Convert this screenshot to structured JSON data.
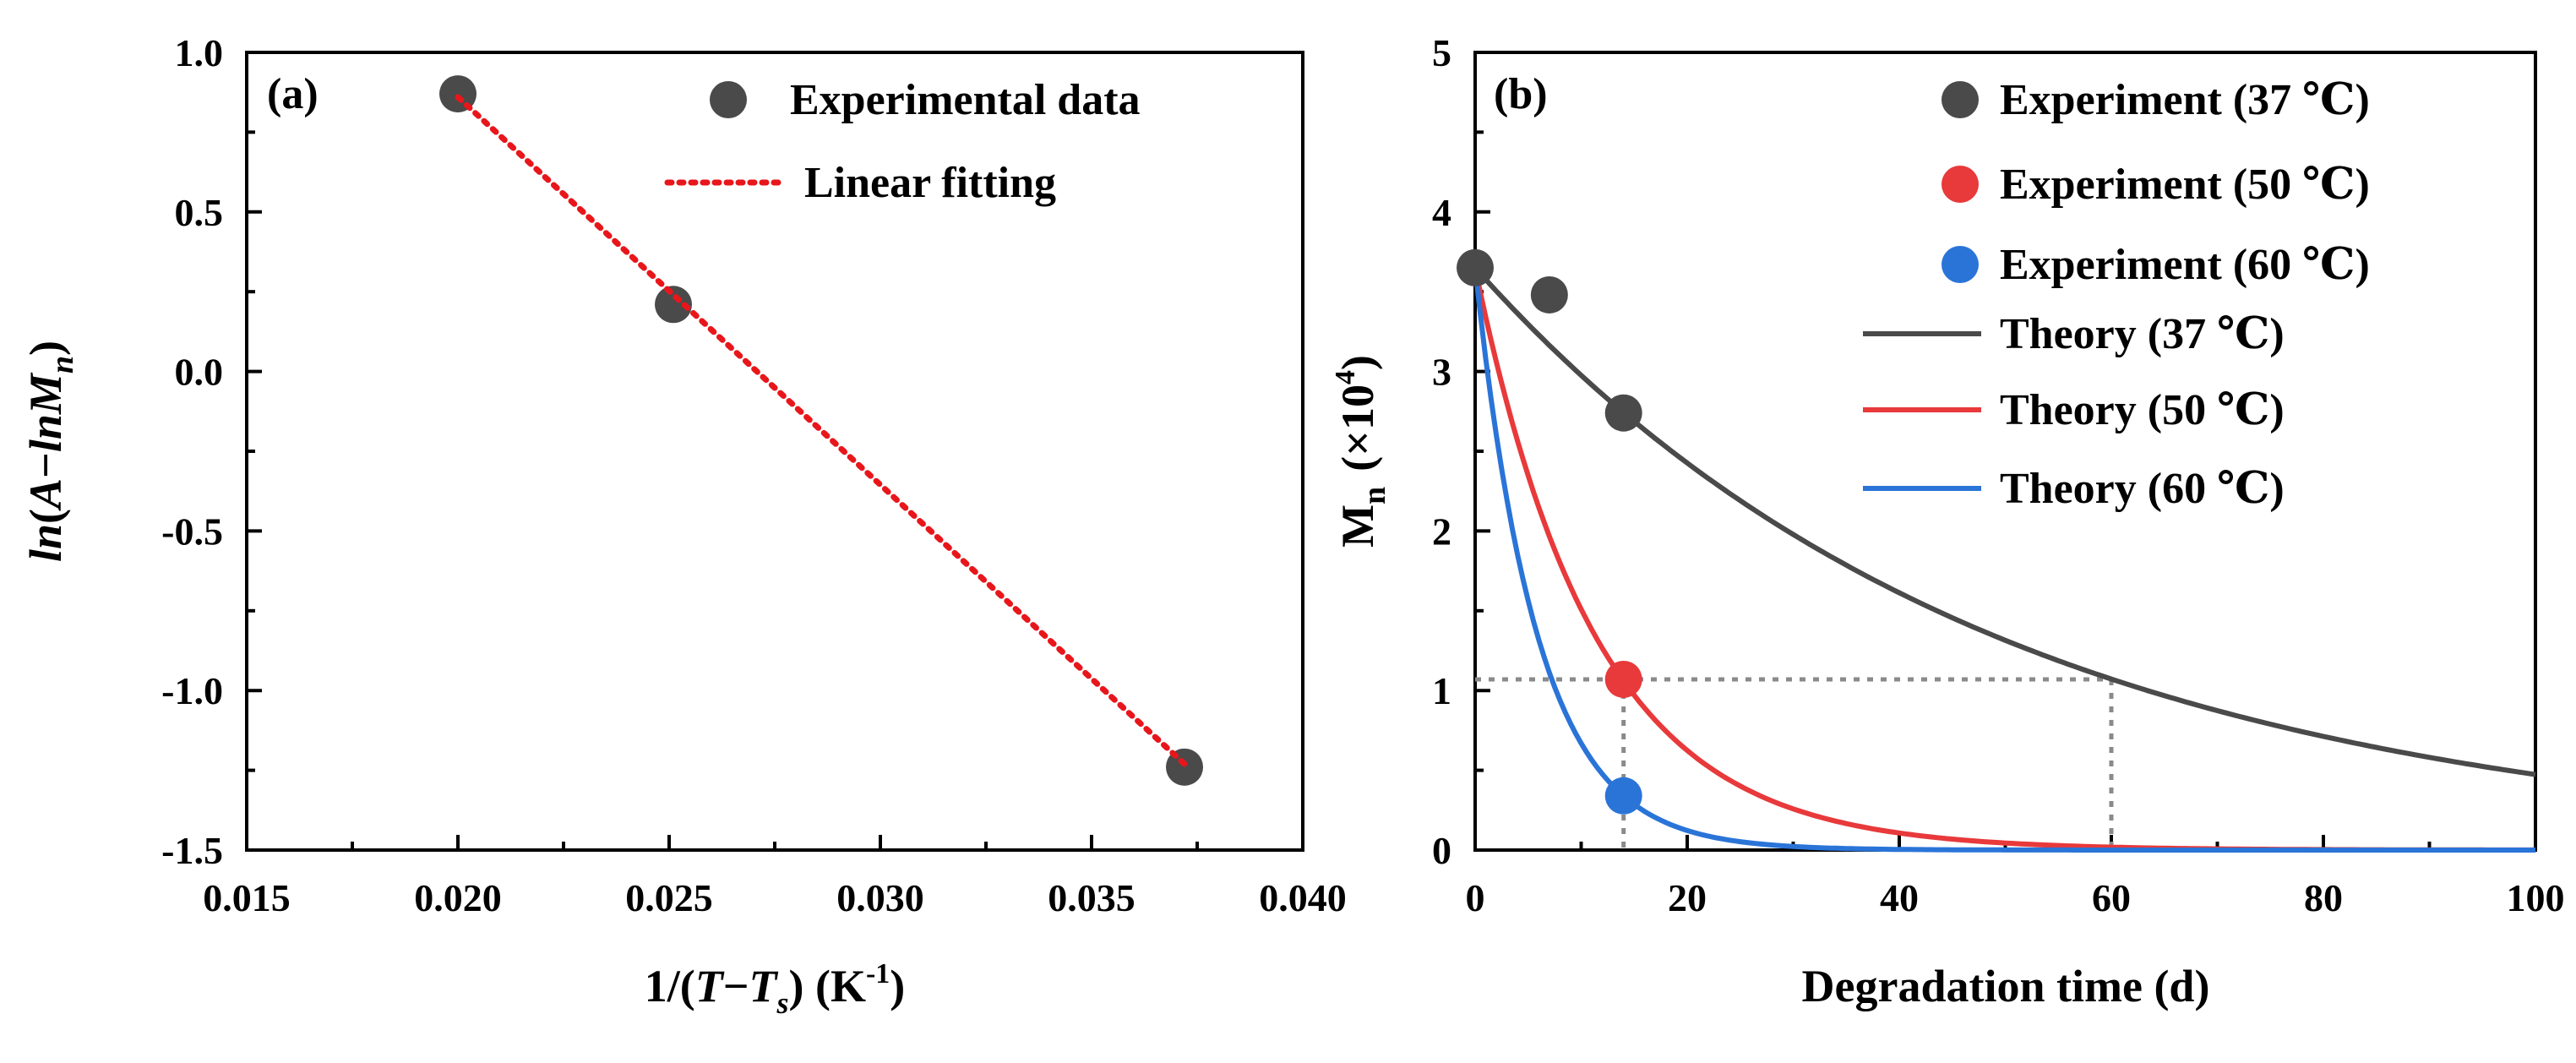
{
  "chart_data": [
    {
      "type": "scatter",
      "panel_label": "(a)",
      "xlabel": {
        "prefix": "1/(",
        "var_T": "T",
        "minus": "−",
        "var_Ts": "T",
        "sub_s": "s",
        "suffix": ")  (K",
        "sup": "-1",
        "close": ")"
      },
      "ylabel": {
        "prefix": "ln",
        "open": "(",
        "A": "A",
        "minus": "−",
        "ln": "ln",
        "M": "M",
        "sub_n": "n",
        "close": ")"
      },
      "xlim": [
        0.015,
        0.04
      ],
      "ylim": [
        -1.5,
        1.0
      ],
      "xticks": [
        "0.015",
        "0.020",
        "0.025",
        "0.030",
        "0.035",
        "0.040"
      ],
      "yticks": [
        "1.0",
        "0.5",
        "0.0",
        "-0.5",
        "-1.0",
        "-1.5"
      ],
      "series": [
        {
          "name": "Experimental data",
          "kind": "scatter",
          "color": "#4a4a4a",
          "x": [
            0.02,
            0.0251,
            0.0372
          ],
          "y": [
            0.87,
            0.21,
            -1.24
          ]
        },
        {
          "name": "Linear fitting",
          "kind": "line",
          "style": "dotted",
          "color": "#e8161b",
          "x": [
            0.02,
            0.0372
          ],
          "y": [
            0.86,
            -1.23
          ]
        }
      ],
      "legend": {
        "position": "top-right",
        "items": [
          "Experimental data",
          "Linear fitting"
        ]
      }
    },
    {
      "type": "line",
      "panel_label": "(b)",
      "xlabel": "Degradation time (d)",
      "ylabel": {
        "M": "M",
        "sub_n": "n",
        "mult": "(×10",
        "sup": "4",
        "close": ")"
      },
      "xlim": [
        0,
        100
      ],
      "ylim": [
        0,
        5
      ],
      "xticks": [
        "0",
        "20",
        "40",
        "60",
        "80",
        "100"
      ],
      "yticks": [
        "5",
        "4",
        "3",
        "2",
        "1",
        "0"
      ],
      "series": [
        {
          "name": "Experiment (37 ℃)",
          "kind": "scatter",
          "color": "#4a4a4a",
          "x": [
            0,
            7,
            14
          ],
          "y": [
            3.65,
            3.48,
            2.74
          ]
        },
        {
          "name": "Experiment (50 ℃)",
          "kind": "scatter",
          "color": "#e8393b",
          "x": [
            14
          ],
          "y": [
            1.07
          ]
        },
        {
          "name": "Experiment (60 ℃)",
          "kind": "scatter",
          "color": "#2a74d8",
          "x": [
            14
          ],
          "y": [
            0.34
          ]
        },
        {
          "name": "Theory (37 ℃)",
          "kind": "curve",
          "color": "#4a4a4a",
          "y0": 3.65,
          "rate": 0.02042
        },
        {
          "name": "Theory (50 ℃)",
          "kind": "curve",
          "color": "#e8393b",
          "y0": 3.65,
          "rate": 0.0883
        },
        {
          "name": "Theory (60 ℃)",
          "kind": "curve",
          "color": "#2a74d8",
          "y0": 3.65,
          "rate": 0.1697
        }
      ],
      "reference_lines": {
        "color": "#8a8a8a",
        "y": 1.07,
        "x_end": 60,
        "x_marks": [
          14,
          60
        ]
      },
      "legend": {
        "position": "top-right",
        "items": [
          "Experiment (37 ℃)",
          "Experiment (50 ℃)",
          "Experiment (60 ℃)",
          "Theory (37 ℃)",
          "Theory (50 ℃)",
          "Theory (60 ℃)"
        ]
      }
    }
  ]
}
